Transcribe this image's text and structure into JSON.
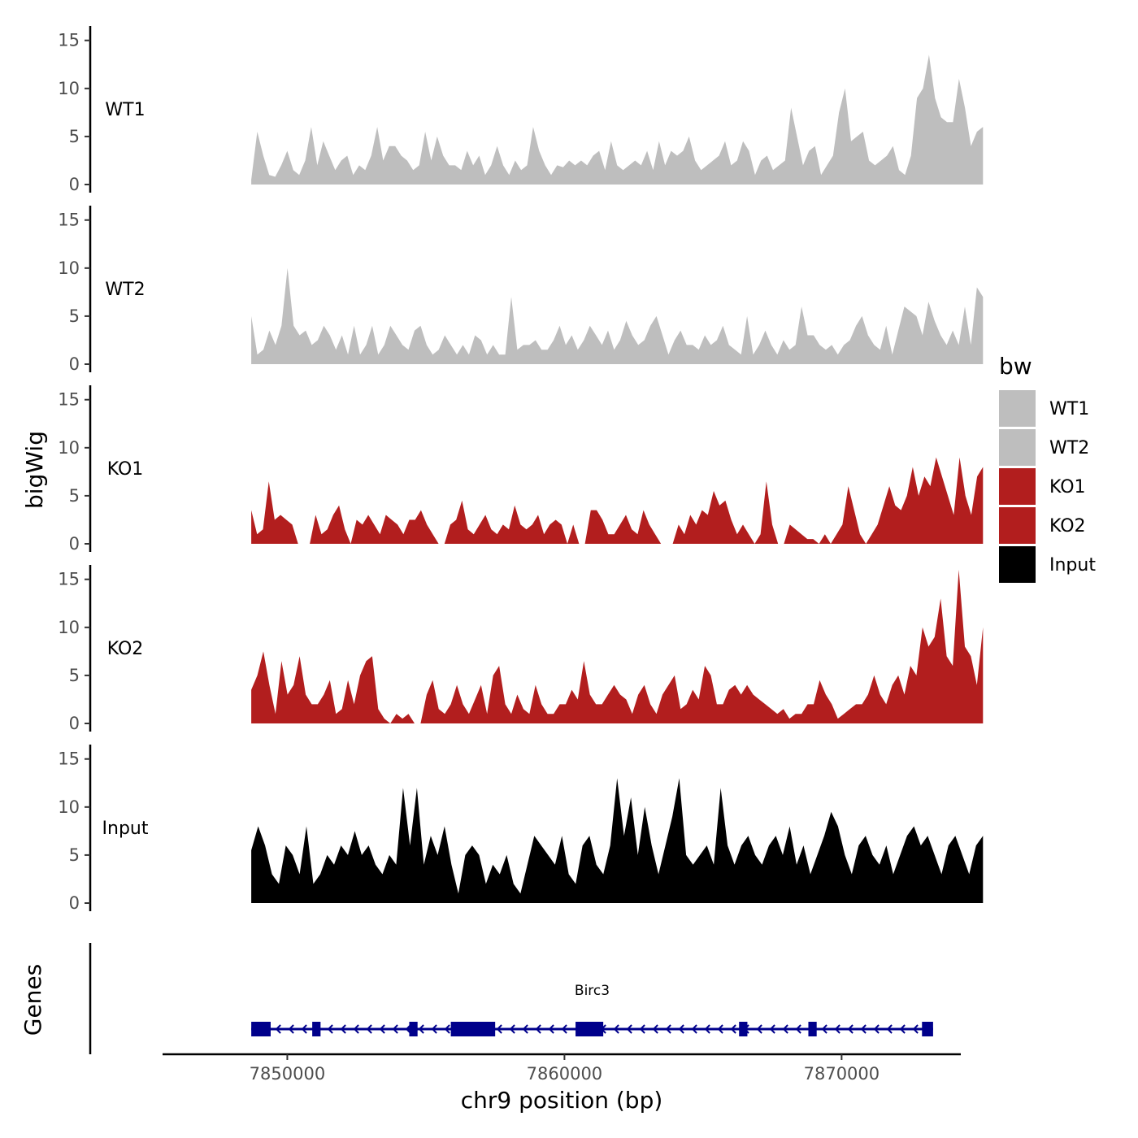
{
  "chart_data": {
    "type": "area",
    "title": "",
    "ylabel": "bigWig",
    "xlabel": "chr9 position (bp)",
    "genes_label": "Genes",
    "xlim": [
      7845500,
      7874300
    ],
    "ylim": [
      0,
      16.5
    ],
    "yticks": [
      0,
      5,
      10,
      15
    ],
    "xticks": [
      7850000,
      7860000,
      7870000
    ],
    "xtick_labels": [
      "7850000",
      "7860000",
      "7870000"
    ],
    "legend": {
      "title": "bw",
      "placement": "right",
      "entries": [
        {
          "label": "WT1",
          "color": "#bebebe"
        },
        {
          "label": "WT2",
          "color": "#bebebe"
        },
        {
          "label": "KO1",
          "color": "#b21e1e"
        },
        {
          "label": "KO2",
          "color": "#b21e1e"
        },
        {
          "label": "Input",
          "color": "#000000"
        }
      ]
    },
    "x_range": [
      7848700,
      7875100
    ],
    "series": [
      {
        "name": "WT1",
        "color": "#bebebe",
        "values": [
          0.5,
          5.5,
          3,
          1,
          0.8,
          2,
          3.5,
          1.5,
          1,
          2.5,
          6,
          2,
          4.5,
          3,
          1.5,
          2.5,
          3,
          1,
          2,
          1.5,
          3,
          6,
          2.5,
          4,
          4,
          3,
          2.5,
          1.5,
          2,
          5.5,
          2.5,
          5,
          3,
          2,
          2,
          1.5,
          3.5,
          2,
          3,
          1,
          2,
          4,
          2,
          1,
          2.5,
          1.5,
          2,
          6,
          3.5,
          2,
          1,
          2,
          1.8,
          2.5,
          2,
          2.5,
          2,
          3,
          3.5,
          1.5,
          4.5,
          2,
          1.5,
          2,
          2.5,
          2,
          3.5,
          1.5,
          4.5,
          2,
          3.5,
          3,
          3.5,
          5,
          2.5,
          1.5,
          2,
          2.5,
          3,
          4.5,
          2,
          2.5,
          4.5,
          3.5,
          1,
          2.5,
          3,
          1.5,
          2,
          2.5,
          8,
          5,
          2,
          3.5,
          4,
          1,
          2,
          3,
          7.5,
          10,
          4.5,
          5,
          5.5,
          2.5,
          2,
          2.5,
          3,
          4,
          1.5,
          1,
          3,
          9,
          10,
          13.5,
          9,
          7,
          6.5,
          6.5,
          11,
          8,
          4,
          5.5,
          6
        ]
      },
      {
        "name": "WT2",
        "color": "#bebebe",
        "values": [
          5,
          1,
          1.5,
          3.5,
          2,
          4,
          10,
          4,
          3,
          3.5,
          2,
          2.5,
          4,
          3,
          1.5,
          3,
          1,
          4,
          1,
          2,
          4,
          1,
          2,
          4,
          3,
          2,
          1.5,
          3.5,
          4,
          2,
          1,
          1.5,
          3,
          2,
          1,
          2,
          1,
          3,
          2.5,
          1,
          2,
          1,
          1,
          7,
          1.5,
          2,
          2,
          2.5,
          1.5,
          1.5,
          2.5,
          4,
          2,
          3,
          1.5,
          2.5,
          4,
          3,
          2,
          3.5,
          1.5,
          2.5,
          4.5,
          3,
          2,
          2.5,
          4,
          5,
          3,
          1,
          2.5,
          3.5,
          2,
          2,
          1.5,
          3,
          2,
          2.5,
          4,
          2,
          1.5,
          1,
          5,
          1,
          2,
          3.5,
          2,
          1,
          2.5,
          1.5,
          2,
          6,
          3,
          3,
          2,
          1.5,
          2,
          1,
          2,
          2.5,
          4,
          5,
          3,
          2,
          1.5,
          4,
          1,
          3.5,
          6,
          5.5,
          5,
          3,
          6.5,
          4.5,
          3,
          2,
          3.5,
          2,
          6,
          2,
          8,
          7
        ]
      },
      {
        "name": "KO1",
        "color": "#b21e1e",
        "values": [
          3.5,
          1,
          1.5,
          6.5,
          2.5,
          3,
          2.5,
          2,
          0,
          0,
          0,
          3,
          1,
          1.5,
          3,
          4,
          1.5,
          0,
          2.5,
          2,
          3,
          2,
          1,
          3,
          2.5,
          2,
          1,
          2.5,
          2.5,
          3.5,
          2,
          1,
          0,
          0,
          2,
          2.5,
          4.5,
          1.5,
          1,
          2,
          3,
          1.5,
          1,
          2,
          1.5,
          4,
          2,
          1.5,
          2,
          3,
          1,
          2,
          2.5,
          2,
          0,
          2,
          0,
          0,
          3.5,
          3.5,
          2.5,
          1,
          1,
          2,
          3,
          1.5,
          1,
          3.5,
          2,
          1,
          0,
          0,
          0,
          2,
          1,
          3,
          2,
          3.5,
          3,
          5.5,
          4,
          4.5,
          2.5,
          1,
          2,
          1,
          0,
          1,
          6.5,
          2,
          0,
          0,
          2,
          1.5,
          1,
          0.5,
          0.5,
          0,
          1,
          0,
          1,
          2,
          6,
          3.5,
          1,
          0,
          1,
          2,
          4,
          6,
          4,
          3.5,
          5,
          8,
          5,
          7,
          6,
          9,
          7,
          5,
          3,
          9,
          5,
          3,
          7,
          8
        ]
      },
      {
        "name": "KO2",
        "color": "#b21e1e",
        "values": [
          3.5,
          5,
          7.5,
          4,
          1,
          6.5,
          3,
          4,
          7,
          3,
          2,
          2,
          3,
          4.5,
          1,
          1.5,
          4.5,
          2,
          5,
          6.5,
          7,
          1.5,
          0.5,
          0,
          1,
          0.5,
          1,
          0,
          0,
          3,
          4.5,
          1.5,
          1,
          2,
          4,
          2,
          1,
          2.5,
          4,
          1,
          5,
          6,
          2,
          1,
          3,
          1.5,
          1,
          4,
          2,
          1,
          1,
          2,
          2,
          3.5,
          2.5,
          6.5,
          3,
          2,
          2,
          3,
          4,
          3,
          2.5,
          1,
          3,
          4,
          2,
          1,
          3,
          4,
          5,
          1.5,
          2,
          3.5,
          2.5,
          6,
          5,
          2,
          2,
          3.5,
          4,
          3,
          4,
          3,
          2.5,
          2,
          1.5,
          1,
          1.5,
          0.5,
          1,
          1,
          2,
          2,
          4.5,
          3,
          2,
          0.5,
          1,
          1.5,
          2,
          2,
          3,
          5,
          3,
          2,
          4,
          5,
          3,
          6,
          5,
          10,
          8,
          9,
          13,
          7,
          6,
          16,
          8,
          7,
          4,
          10
        ]
      },
      {
        "name": "Input",
        "color": "#000000",
        "values": [
          5.5,
          8,
          6,
          3,
          2,
          6,
          5,
          3,
          8,
          2,
          3,
          5,
          4,
          6,
          5,
          7.5,
          5,
          6,
          4,
          3,
          5,
          4,
          12,
          6,
          12,
          4,
          7,
          5,
          8,
          4,
          1,
          5,
          6,
          5,
          2,
          4,
          3,
          5,
          2,
          1,
          4,
          7,
          6,
          5,
          4,
          7,
          3,
          2,
          6,
          7,
          4,
          3,
          6,
          13,
          7,
          11,
          5,
          10,
          6,
          3,
          6,
          9,
          13,
          5,
          4,
          5,
          6,
          4,
          12,
          6,
          4,
          6,
          7,
          5,
          4,
          6,
          7,
          5,
          8,
          4,
          6,
          3,
          5,
          7,
          9.5,
          8,
          5,
          3,
          6,
          7,
          5,
          4,
          6,
          3,
          5,
          7,
          8,
          6,
          7,
          5,
          3,
          6,
          7,
          5,
          3,
          6,
          7
        ]
      }
    ],
    "gene": {
      "name": "Birc3",
      "color": "#00008b",
      "start": 7848700,
      "end": 7873300,
      "strand": "-",
      "exons": [
        [
          7848700,
          7849400
        ],
        [
          7850900,
          7851200
        ],
        [
          7854400,
          7854700
        ],
        [
          7855900,
          7857500
        ],
        [
          7860400,
          7861400
        ],
        [
          7866300,
          7866600
        ],
        [
          7868800,
          7869100
        ],
        [
          7872900,
          7873300
        ]
      ]
    }
  }
}
